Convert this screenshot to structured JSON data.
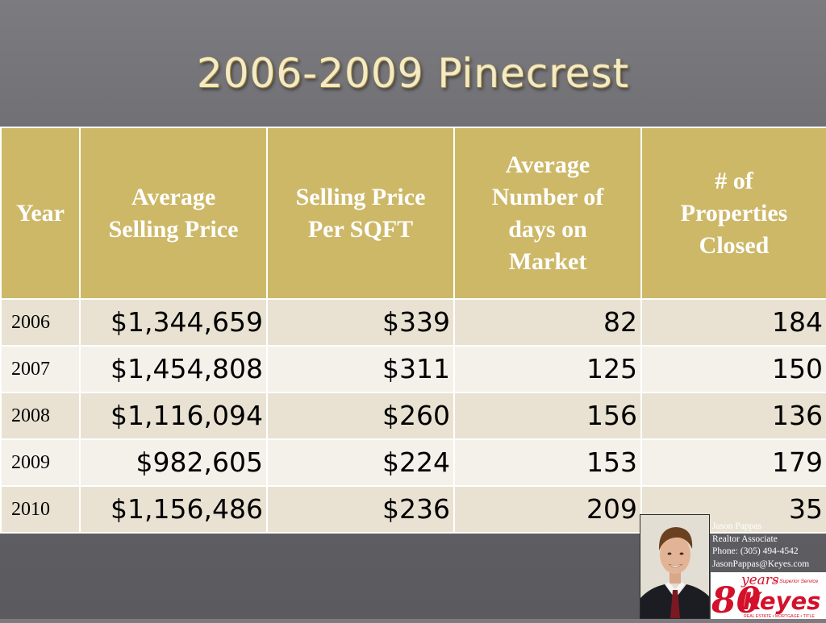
{
  "slide": {
    "title": "2006-2009 Pinecrest"
  },
  "table": {
    "headers": [
      "Year",
      "Average\nSelling Price",
      "Selling Price\nPer  SQFT",
      "Average\nNumber  of\ndays on\nMarket",
      "# of\nProperties\nClosed"
    ],
    "rows": [
      [
        "2006",
        "$1,344,659",
        "$339",
        "82",
        "184"
      ],
      [
        "2007",
        "$1,454,808",
        "$311",
        "125",
        "150"
      ],
      [
        "2008",
        "$1,116,094",
        "$260",
        "156",
        "136"
      ],
      [
        "2009",
        "$982,605",
        "$224",
        "153",
        "179"
      ],
      [
        "2010",
        "$1,156,486",
        "$236",
        "209",
        "35"
      ]
    ]
  },
  "agent": {
    "name": "Jason Pappas",
    "role": "Realtor Associate",
    "phone": "Phone: (305) 494-4542",
    "email": "JasonPappas@Keyes.com"
  },
  "logo": {
    "years_number": "80",
    "years_word": "years",
    "tagline": "of Superior Service",
    "brand": "Keyes",
    "services": "REAL ESTATE • MORTGAGE • TITLE"
  },
  "colors": {
    "header_fill": "#cdb868",
    "row_odd": "#e9e2d3",
    "row_even": "#f4f1eb",
    "logo_red": "#d3112b"
  }
}
